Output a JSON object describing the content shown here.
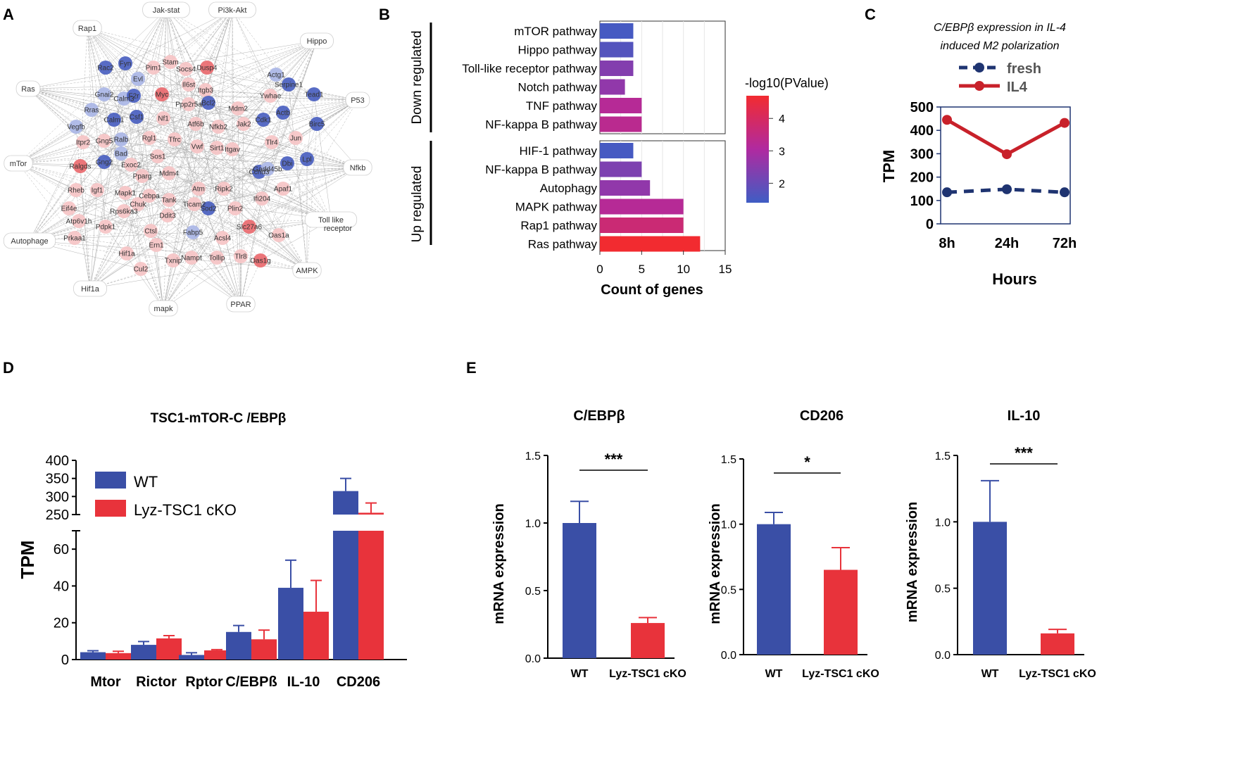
{
  "panel_labels": {
    "a": "A",
    "b": "B",
    "c": "C",
    "d": "D",
    "e": "E"
  },
  "colors": {
    "blue": "#3a4fa6",
    "red": "#e8333b",
    "navy": "#1f3471",
    "darkred": "#c8212a",
    "node_blue_dark": "#4a5fc0",
    "node_blue_light": "#aab6e6",
    "node_red_dark": "#ea6a6f",
    "node_red_light": "#f6c4c6"
  },
  "network": {
    "hubs": [
      "Jak-stat",
      "Pi3k-Akt",
      "Rap1",
      "Hippo",
      "Ras",
      "P53",
      "mTor",
      "Nfkb",
      "Autophage",
      "Toll like",
      "receptor",
      "AMPK",
      "Hif1a",
      "mapk",
      "PPAR"
    ],
    "genes": [
      "Rac2",
      "Fyn",
      "Evl",
      "Pim1",
      "Stam",
      "Socs4",
      "Dusp4",
      "Actg1",
      "Serpine1",
      "Tead1",
      "Gnai2",
      "Calm3",
      "F2r",
      "Myc",
      "Il6st",
      "Itgb3",
      "Ywhae",
      "Rras",
      "Calm1",
      "Csf1",
      "Nf1",
      "Ppp2r5a",
      "Bcl2",
      "Mdm2",
      "Actb",
      "Birc5",
      "Vegfb",
      "Gng5",
      "Ralb",
      "Rgl1",
      "Tfrc",
      "Atf6b",
      "Nfkb2",
      "Jak2",
      "Cdk1",
      "Jun",
      "Itpr2",
      "Bad",
      "Sos1",
      "Vwf",
      "Sirt1",
      "Itgav",
      "Tlr4",
      "Ralgds",
      "Gng2",
      "Exoc2",
      "Mdm4",
      "Ccnd3",
      "Gadd45b",
      "Dbi",
      "Lpl",
      "Igf1",
      "Pparg",
      "Tank",
      "Atm",
      "Ripk2",
      "Rheb",
      "Mapk1",
      "Chuk",
      "Cebpa",
      "Ticam2",
      "Sod2",
      "Plin2",
      "Ifi204",
      "Apaf1",
      "Eif4e",
      "Rps6ka3",
      "Ddit3",
      "Fabp5",
      "Slc27a6",
      "Oas1a",
      "Atp6v1h",
      "Pdpk1",
      "Ctsl",
      "Acsl4",
      "Prkaa1",
      "Nampt",
      "Tollip",
      "Tlr8",
      "Oas1g",
      "Hif1a",
      "Ern1",
      "Cul2",
      "Txnip"
    ]
  },
  "chart_data": [
    {
      "id": "B",
      "type": "bar",
      "orientation": "horizontal",
      "groups": [
        {
          "name": "Down regulated",
          "categories": [
            "mTOR pathway",
            "Hippo pathway",
            "Toll-like receptor pathway",
            "Notch pathway",
            "TNF pathway",
            "NF-kappa B pathway"
          ],
          "values": [
            4,
            4,
            4,
            3,
            5,
            5
          ],
          "neg_log10_p": [
            1.5,
            1.7,
            2.4,
            2.6,
            3.2,
            3.3
          ]
        },
        {
          "name": "Up regulated",
          "categories": [
            "HIF-1 pathway",
            "NF-kappa B pathway",
            "Autophagy",
            "MAPK pathway",
            "Rap1 pathway",
            "Ras pathway"
          ],
          "values": [
            4,
            5,
            6,
            10,
            10,
            12
          ],
          "neg_log10_p": [
            1.5,
            2.3,
            2.6,
            3.2,
            3.7,
            4.7
          ]
        }
      ],
      "xlabel": "Count of genes",
      "xlim": [
        0,
        15
      ],
      "xticks": [
        0,
        5,
        10,
        15
      ],
      "legend_title": "-log10(PValue)",
      "colorbar_ticks": [
        2,
        3,
        4
      ],
      "colorbar_range": [
        1.4,
        4.7
      ]
    },
    {
      "id": "C",
      "type": "line",
      "title": "C/EBPβ expression in IL-4 induced M2 polarization",
      "title_line1": "C/EBPβ expression in IL-4",
      "title_line2": "induced M2 polarization",
      "categories": [
        "8h",
        "24h",
        "72h"
      ],
      "series": [
        {
          "name": "fresh",
          "values": [
            135,
            148,
            135
          ],
          "style": "dashed"
        },
        {
          "name": "IL4",
          "values": [
            445,
            298,
            432
          ],
          "style": "solid"
        }
      ],
      "xlabel": "Hours",
      "ylabel": "TPM",
      "ylim": [
        0,
        500
      ],
      "yticks": [
        0,
        100,
        200,
        300,
        400,
        500
      ]
    },
    {
      "id": "D",
      "type": "bar",
      "title": "TSC1-mTOR-C /EBPβ",
      "categories": [
        "Mtor",
        "Rictor",
        "Rptor",
        "C/EBPß",
        "IL-10",
        "CD206"
      ],
      "series": [
        {
          "name": "WT",
          "values": [
            4,
            8,
            2.5,
            15,
            39,
            315
          ],
          "errors": [
            0.8,
            1.8,
            1.2,
            3.5,
            15,
            35
          ]
        },
        {
          "name": "Lyz-TSC1 cKO",
          "values": [
            3.5,
            11.5,
            5,
            11,
            26,
            255
          ],
          "errors": [
            1,
            1.5,
            0.4,
            5,
            17,
            27
          ]
        }
      ],
      "ylabel": "TPM",
      "ylim_lower": [
        0,
        70
      ],
      "yticks_lower": [
        0,
        20,
        40,
        60
      ],
      "ylim_upper": [
        250,
        400
      ],
      "yticks_upper": [
        250,
        300,
        350,
        400
      ],
      "axis_break": true
    },
    {
      "id": "E1",
      "type": "bar",
      "title": "C/EBPβ",
      "categories": [
        "WT",
        "Lyz-TSC1 cKO"
      ],
      "values": [
        1.0,
        0.26
      ],
      "errors": [
        0.16,
        0.04
      ],
      "significance": "***",
      "ylabel": "mRNA expression",
      "ylim": [
        0,
        1.5
      ],
      "yticks": [
        "0.0",
        "0.5",
        "1.0",
        "1.5"
      ]
    },
    {
      "id": "E2",
      "type": "bar",
      "title": "CD206",
      "categories": [
        "WT",
        "Lyz-TSC1 cKO"
      ],
      "values": [
        1.0,
        0.65
      ],
      "errors": [
        0.09,
        0.17
      ],
      "significance": "*",
      "ylabel": "mRNA expression",
      "ylim": [
        0,
        1.5
      ],
      "yticks": [
        "0.0",
        "0.5",
        "1.0",
        "1.5"
      ]
    },
    {
      "id": "E3",
      "type": "bar",
      "title": "IL-10",
      "categories": [
        "WT",
        "Lyz-TSC1 cKO"
      ],
      "values": [
        1.0,
        0.16
      ],
      "errors": [
        0.31,
        0.03
      ],
      "significance": "***",
      "ylabel": "mRNA expression",
      "ylim": [
        0,
        1.5
      ],
      "yticks": [
        "0.0",
        "0.5",
        "1.0",
        "1.5"
      ]
    }
  ]
}
